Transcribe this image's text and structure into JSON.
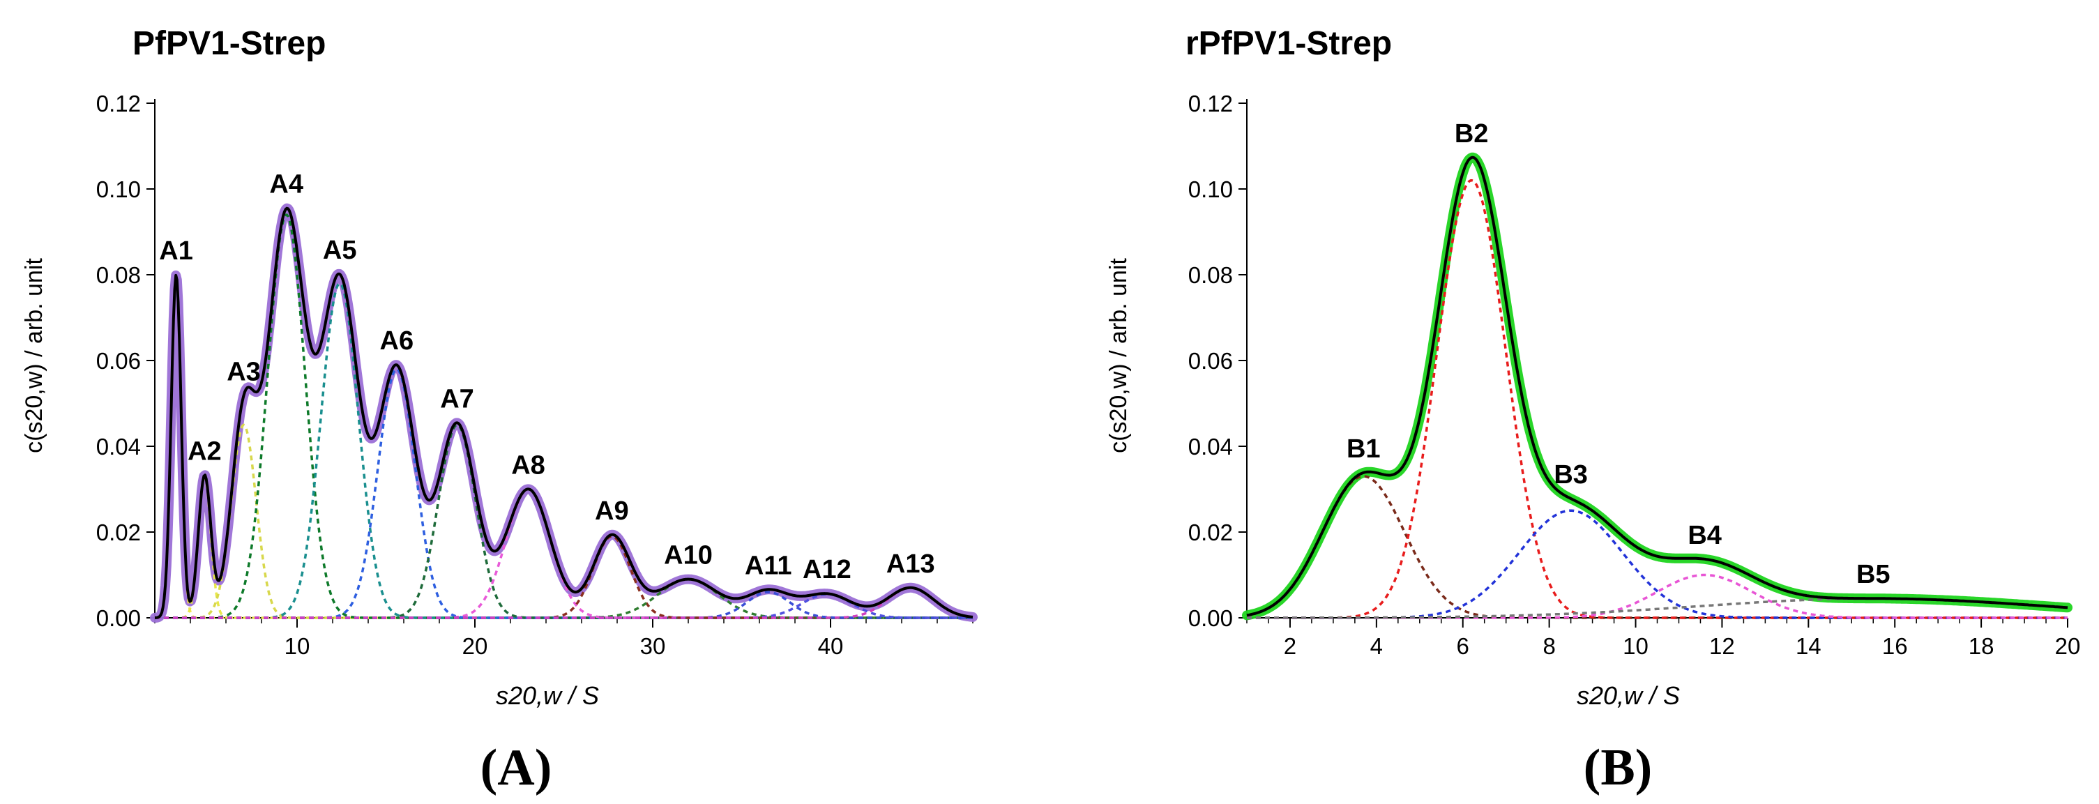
{
  "figure": {
    "panel_a_caption": "(A)",
    "panel_b_caption": "(B)"
  },
  "chart_data": [
    {
      "type": "line",
      "panel": "A",
      "title": "PfPV1-Strep",
      "ylabel": "c(s20,w) / arb. unit",
      "xlabel": "s20,w / S",
      "xlim": [
        2,
        48
      ],
      "ylim": [
        0,
        0.12
      ],
      "xticks": [
        10,
        20,
        30,
        40
      ],
      "xminor_step": 2,
      "yticks": [
        0.0,
        0.02,
        0.04,
        0.06,
        0.08,
        0.1,
        0.12
      ],
      "colors": {
        "data_band": "#9b6fd6",
        "total_fit": "#000000",
        "peak_colors": [
          "#f4e04d",
          "#e8e84a",
          "#d8d84c",
          "#0e7a2a",
          "#1a8f8f",
          "#2e5fe0",
          "#1e6b3a",
          "#e85ad8",
          "#8b2e1e",
          "#2f7d2f",
          "#3a4fd6",
          "#5050e0",
          "#d040c0"
        ]
      },
      "peaks": [
        {
          "label": "A1",
          "center": 3.2,
          "height": 0.08,
          "width": 0.28
        },
        {
          "label": "A2",
          "center": 4.8,
          "height": 0.033,
          "width": 0.35
        },
        {
          "label": "A3",
          "center": 7.0,
          "height": 0.045,
          "width": 0.7
        },
        {
          "label": "A4",
          "center": 9.4,
          "height": 0.094,
          "width": 1.05
        },
        {
          "label": "A5",
          "center": 12.4,
          "height": 0.078,
          "width": 1.05
        },
        {
          "label": "A6",
          "center": 15.6,
          "height": 0.058,
          "width": 1.05
        },
        {
          "label": "A7",
          "center": 19.0,
          "height": 0.045,
          "width": 1.05
        },
        {
          "label": "A8",
          "center": 23.0,
          "height": 0.03,
          "width": 1.25
        },
        {
          "label": "A9",
          "center": 27.7,
          "height": 0.019,
          "width": 1.05
        },
        {
          "label": "A10",
          "center": 32.0,
          "height": 0.009,
          "width": 1.7
        },
        {
          "label": "A11",
          "center": 36.5,
          "height": 0.006,
          "width": 1.2
        },
        {
          "label": "A12",
          "center": 39.8,
          "height": 0.0055,
          "width": 1.4
        },
        {
          "label": "A13",
          "center": 44.5,
          "height": 0.007,
          "width": 1.3
        }
      ]
    },
    {
      "type": "line",
      "panel": "B",
      "title": "rPfPV1-Strep",
      "ylabel": "c(s20,w) / arb. unit",
      "xlabel": "s20,w / S",
      "xlim": [
        1,
        20
      ],
      "ylim": [
        0,
        0.12
      ],
      "xticks": [
        2,
        4,
        6,
        8,
        10,
        12,
        14,
        16,
        18,
        20
      ],
      "xminor_step": 0.5,
      "yticks": [
        0.0,
        0.02,
        0.04,
        0.06,
        0.08,
        0.1,
        0.12
      ],
      "colors": {
        "data_band": "#1ed41e",
        "total_fit": "#000000",
        "peak_colors": [
          "#7a2a1a",
          "#e81c1c",
          "#2233d8",
          "#e855d5",
          "#777777"
        ]
      },
      "peaks": [
        {
          "label": "B1",
          "center": 3.7,
          "height": 0.033,
          "width": 0.95
        },
        {
          "label": "B2",
          "center": 6.2,
          "height": 0.102,
          "width": 0.8
        },
        {
          "label": "B3",
          "center": 8.5,
          "height": 0.025,
          "width": 1.2
        },
        {
          "label": "B4",
          "center": 11.6,
          "height": 0.01,
          "width": 1.1
        },
        {
          "label": "B5",
          "center": 15.5,
          "height": 0.0045,
          "width": 4.0
        }
      ]
    }
  ]
}
